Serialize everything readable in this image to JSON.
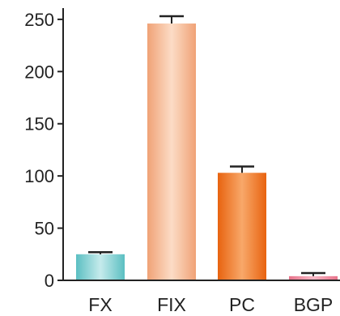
{
  "chart_data": {
    "type": "bar",
    "title": "",
    "xlabel": "",
    "ylabel": "",
    "categories": [
      "FX",
      "FIX",
      "PC",
      "BGP"
    ],
    "values": [
      25,
      246,
      103,
      4
    ],
    "error_upper": [
      27,
      253,
      109,
      7
    ],
    "ylim": [
      0,
      260
    ],
    "yticks": [
      0,
      50,
      100,
      150,
      200,
      250
    ],
    "grid": false,
    "legend": "none",
    "colors": {
      "FX": {
        "edge": "#5bbfc2",
        "center": "#c6ebec"
      },
      "FIX": {
        "edge": "#f0a276",
        "center": "#fcdcc6"
      },
      "PC": {
        "edge": "#e8630f",
        "center": "#f8a86a"
      },
      "BGP": {
        "edge": "#e8728a",
        "center": "#f7b9c6"
      }
    },
    "axis_color": "#222222",
    "error_bar_color": "#222222"
  }
}
